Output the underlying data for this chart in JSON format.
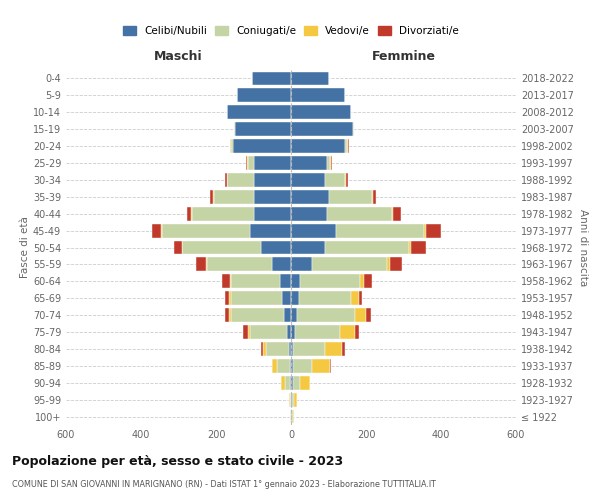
{
  "age_groups": [
    "100+",
    "95-99",
    "90-94",
    "85-89",
    "80-84",
    "75-79",
    "70-74",
    "65-69",
    "60-64",
    "55-59",
    "50-54",
    "45-49",
    "40-44",
    "35-39",
    "30-34",
    "25-29",
    "20-24",
    "15-19",
    "10-14",
    "5-9",
    "0-4"
  ],
  "birth_years": [
    "≤ 1922",
    "1923-1927",
    "1928-1932",
    "1933-1937",
    "1938-1942",
    "1943-1947",
    "1948-1952",
    "1953-1957",
    "1958-1962",
    "1963-1967",
    "1968-1972",
    "1973-1977",
    "1978-1982",
    "1983-1987",
    "1988-1992",
    "1993-1997",
    "1998-2002",
    "2003-2007",
    "2008-2012",
    "2013-2017",
    "2018-2022"
  ],
  "colors": {
    "celibi": "#4472a4",
    "coniugati": "#c5d4a4",
    "vedovi": "#f5c842",
    "divorziati": "#c0392b"
  },
  "males": {
    "celibi": [
      0,
      0,
      2,
      2,
      6,
      10,
      20,
      25,
      30,
      50,
      80,
      110,
      100,
      100,
      100,
      100,
      155,
      150,
      170,
      145,
      105
    ],
    "coniugati": [
      2,
      2,
      15,
      35,
      60,
      100,
      140,
      135,
      130,
      175,
      210,
      235,
      165,
      105,
      70,
      15,
      5,
      2,
      0,
      0,
      0
    ],
    "vedovi": [
      2,
      3,
      10,
      15,
      10,
      5,
      5,
      5,
      3,
      3,
      2,
      3,
      2,
      2,
      2,
      2,
      2,
      0,
      0,
      0,
      0
    ],
    "divorziati": [
      0,
      0,
      0,
      0,
      5,
      12,
      12,
      12,
      20,
      25,
      20,
      22,
      10,
      8,
      5,
      2,
      2,
      0,
      0,
      0,
      0
    ]
  },
  "females": {
    "celibi": [
      1,
      2,
      5,
      5,
      6,
      10,
      15,
      20,
      25,
      55,
      90,
      120,
      95,
      100,
      90,
      95,
      145,
      165,
      160,
      145,
      100
    ],
    "coniugati": [
      3,
      5,
      20,
      50,
      85,
      120,
      155,
      140,
      160,
      200,
      225,
      235,
      175,
      115,
      55,
      10,
      5,
      2,
      0,
      0,
      0
    ],
    "vedovi": [
      5,
      10,
      25,
      50,
      45,
      40,
      30,
      20,
      10,
      10,
      5,
      5,
      3,
      3,
      2,
      2,
      2,
      0,
      0,
      0,
      0
    ],
    "divorziati": [
      0,
      0,
      0,
      2,
      8,
      10,
      12,
      10,
      20,
      30,
      40,
      40,
      20,
      8,
      5,
      3,
      2,
      0,
      0,
      0,
      0
    ]
  },
  "title": "Popolazione per età, sesso e stato civile - 2023",
  "subtitle": "COMUNE DI SAN GIOVANNI IN MARIGNANO (RN) - Dati ISTAT 1° gennaio 2023 - Elaborazione TUTTITALIA.IT",
  "xlabel_left": "Maschi",
  "xlabel_right": "Femmine",
  "ylabel_left": "Fasce di età",
  "ylabel_right": "Anni di nascita",
  "xlim": 600,
  "legend_labels": [
    "Celibi/Nubili",
    "Coniugati/e",
    "Vedovi/e",
    "Divorziati/e"
  ],
  "background_color": "#ffffff",
  "grid_color": "#cccccc"
}
